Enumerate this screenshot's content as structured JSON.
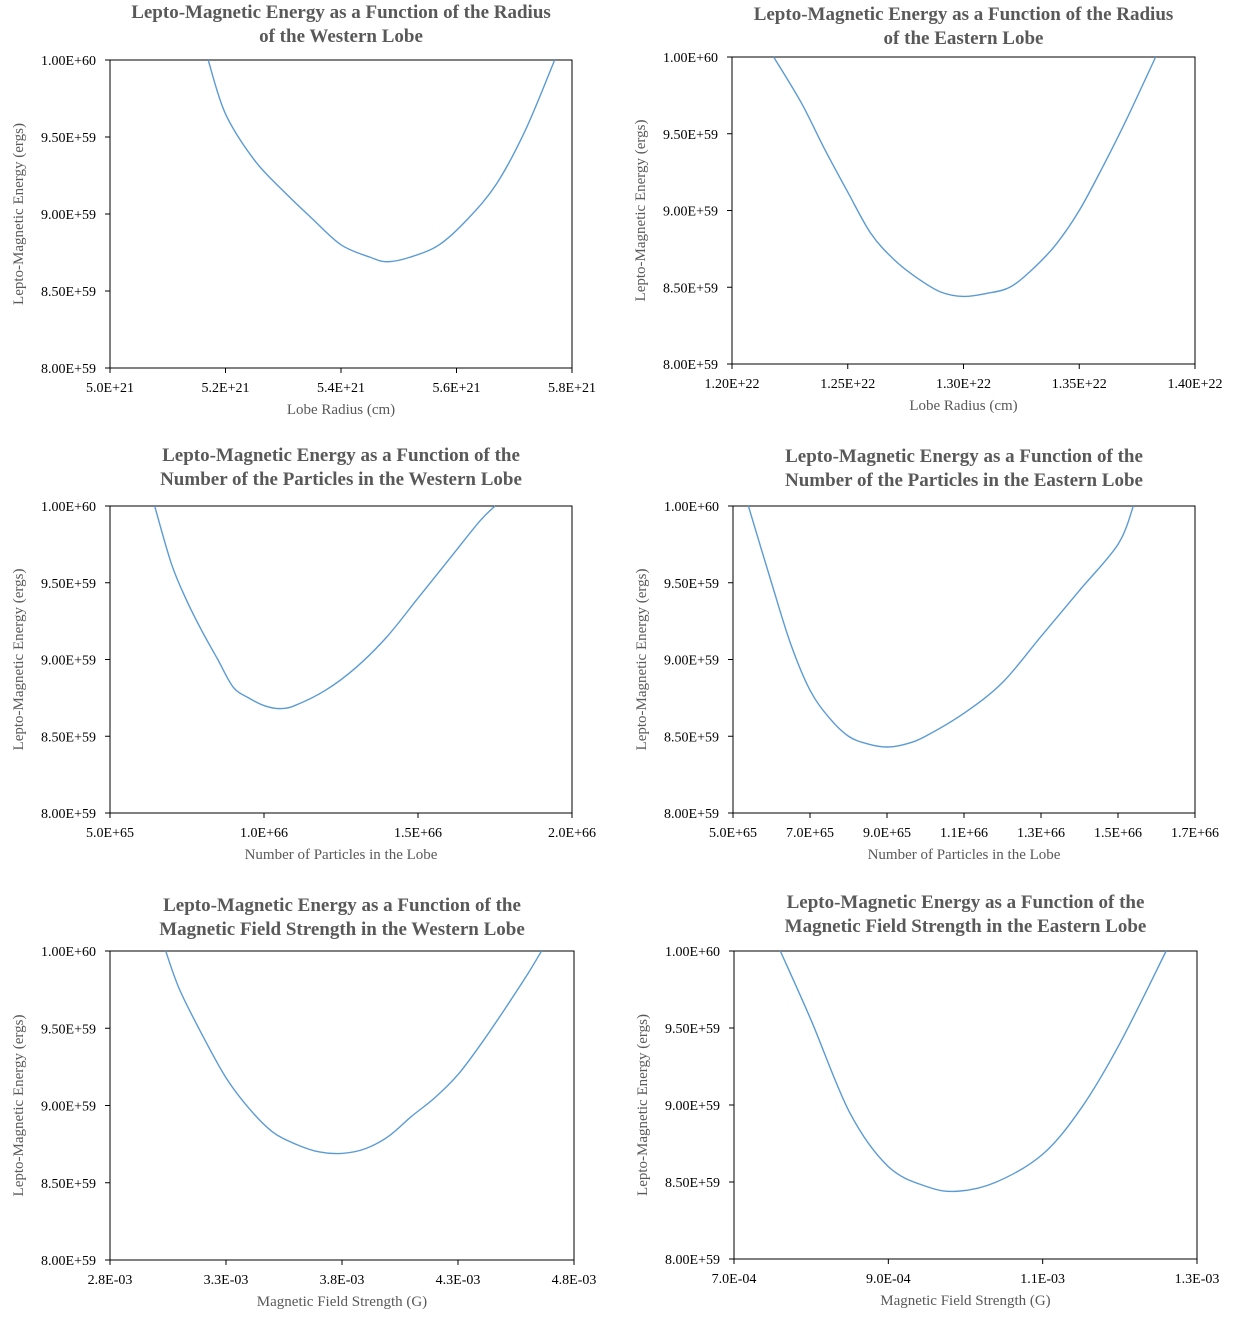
{
  "figure": {
    "curve_color": "#5b9bd5"
  },
  "chart_data": [
    {
      "type": "line",
      "title": [
        "Lepto-Magnetic Energy as a Function of the Radius",
        "of the Western Lobe"
      ],
      "xlabel": "Lobe Radius (cm)",
      "ylabel": "Lepto-Magnetic Energy (ergs)",
      "x_tick_labels": [
        "5.0E+21",
        "5.2E+21",
        "5.4E+21",
        "5.6E+21",
        "5.8E+21"
      ],
      "x_ticks": [
        5e+21,
        5.2e+21,
        5.4e+21,
        5.6e+21,
        5.8e+21
      ],
      "xlim": [
        5e+21,
        5.8e+21
      ],
      "y_tick_labels": [
        "8.00E+59",
        "8.50E+59",
        "9.00E+59",
        "9.50E+59",
        "1.00E+60"
      ],
      "ylim": [
        8e+59,
        1e+60
      ],
      "grid": false,
      "series": [
        {
          "x": [
            5.17e+21,
            5.2e+21,
            5.25e+21,
            5.3e+21,
            5.35e+21,
            5.4e+21,
            5.45e+21,
            5.48e+21,
            5.52e+21,
            5.57e+21,
            5.62e+21,
            5.67e+21,
            5.72e+21,
            5.77e+21
          ],
          "y": [
            1e+60,
            9.65e+59,
            9.35e+59,
            9.15e+59,
            8.97e+59,
            8.8e+59,
            8.72e+59,
            8.69e+59,
            8.72e+59,
            8.8e+59,
            8.97e+59,
            9.2e+59,
            9.55e+59,
            1e+60
          ]
        }
      ]
    },
    {
      "type": "line",
      "title": [
        "Lepto-Magnetic Energy as a Function of the Radius",
        "of the Eastern Lobe"
      ],
      "xlabel": "Lobe Radius (cm)",
      "ylabel": "Lepto-Magnetic Energy (ergs)",
      "x_tick_labels": [
        "1.20E+22",
        "1.25E+22",
        "1.30E+22",
        "1.35E+22",
        "1.40E+22"
      ],
      "x_ticks": [
        1.2e+22,
        1.25e+22,
        1.3e+22,
        1.35e+22,
        1.4e+22
      ],
      "xlim": [
        1.2e+22,
        1.4e+22
      ],
      "y_tick_labels": [
        "8.00E+59",
        "8.50E+59",
        "9.00E+59",
        "9.50E+59",
        "1.00E+60"
      ],
      "ylim": [
        8e+59,
        1e+60
      ],
      "grid": false,
      "series": [
        {
          "x": [
            1.218e+22,
            1.23e+22,
            1.24e+22,
            1.25e+22,
            1.26e+22,
            1.27e+22,
            1.28e+22,
            1.29e+22,
            1.3e+22,
            1.31e+22,
            1.32e+22,
            1.33e+22,
            1.34e+22,
            1.35e+22,
            1.36e+22,
            1.37e+22,
            1.383e+22
          ],
          "y": [
            1e+60,
            9.7e+59,
            9.4e+59,
            9.12e+59,
            8.85e+59,
            8.68e+59,
            8.56e+59,
            8.47e+59,
            8.44e+59,
            8.46e+59,
            8.5e+59,
            8.62e+59,
            8.78e+59,
            9e+59,
            9.28e+59,
            9.58e+59,
            1e+60
          ]
        }
      ]
    },
    {
      "type": "line",
      "title": [
        "Lepto-Magnetic Energy as a Function of the",
        "Number of the Particles in the Western Lobe"
      ],
      "xlabel": "Number of Particles in the Lobe",
      "ylabel": "Lepto-Magnetic Energy (ergs)",
      "x_tick_labels": [
        "5.0E+65",
        "1.0E+66",
        "1.5E+66",
        "2.0E+66"
      ],
      "x_ticks": [
        5e+65,
        1e+66,
        1.5e+66,
        2e+66
      ],
      "xlim": [
        5e+65,
        2e+66
      ],
      "y_tick_labels": [
        "8.00E+59",
        "8.50E+59",
        "9.00E+59",
        "9.50E+59",
        "1.00E+60"
      ],
      "ylim": [
        8e+59,
        1e+60
      ],
      "grid": false,
      "series": [
        {
          "x": [
            6.45e+65,
            7e+65,
            7.5e+65,
            8e+65,
            8.5e+65,
            9e+65,
            9.5e+65,
            1e+66,
            1.05e+66,
            1.1e+66,
            1.2e+66,
            1.3e+66,
            1.4e+66,
            1.5e+66,
            1.6e+66,
            1.7e+66,
            1.75e+66
          ],
          "y": [
            1e+60,
            9.62e+59,
            9.38e+59,
            9.18e+59,
            9e+59,
            8.82e+59,
            8.75e+59,
            8.7e+59,
            8.68e+59,
            8.7e+59,
            8.8e+59,
            8.95e+59,
            9.15e+59,
            9.4e+59,
            9.65e+59,
            9.9e+59,
            1e+60
          ]
        }
      ]
    },
    {
      "type": "line",
      "title": [
        "Lepto-Magnetic Energy as a Function of the",
        "Number of the Particles in the Eastern Lobe"
      ],
      "xlabel": "Number of Particles in the Lobe",
      "ylabel": "Lepto-Magnetic Energy (ergs)",
      "x_tick_labels": [
        "5.0E+65",
        "7.0E+65",
        "9.0E+65",
        "1.1E+66",
        "1.3E+66",
        "1.5E+66",
        "1.7E+66"
      ],
      "x_ticks": [
        5e+65,
        7e+65,
        9e+65,
        1.1e+66,
        1.3e+66,
        1.5e+66,
        1.7e+66
      ],
      "xlim": [
        5e+65,
        1.7e+66
      ],
      "y_tick_labels": [
        "8.00E+59",
        "8.50E+59",
        "9.00E+59",
        "9.50E+59",
        "1.00E+60"
      ],
      "ylim": [
        8e+59,
        1e+60
      ],
      "grid": false,
      "series": [
        {
          "x": [
            5.4e+65,
            6e+65,
            6.5e+65,
            7e+65,
            7.5e+65,
            8e+65,
            8.5e+65,
            9e+65,
            9.5e+65,
            1e+66,
            1.1e+66,
            1.2e+66,
            1.3e+66,
            1.4e+66,
            1.5e+66,
            1.54e+66
          ],
          "y": [
            1e+60,
            9.5e+59,
            9.1e+59,
            8.8e+59,
            8.62e+59,
            8.5e+59,
            8.45e+59,
            8.43e+59,
            8.45e+59,
            8.5e+59,
            8.65e+59,
            8.85e+59,
            9.15e+59,
            9.45e+59,
            9.75e+59,
            1e+60
          ]
        }
      ]
    },
    {
      "type": "line",
      "title": [
        "Lepto-Magnetic Energy as a Function of the",
        "Magnetic Field Strength in the Western Lobe"
      ],
      "xlabel": "Magnetic Field Strength (G)",
      "ylabel": "Lepto-Magnetic Energy (ergs)",
      "x_tick_labels": [
        "2.8E-03",
        "3.3E-03",
        "3.8E-03",
        "4.3E-03",
        "4.8E-03"
      ],
      "x_ticks": [
        0.0028,
        0.0033,
        0.0038,
        0.0043,
        0.0048
      ],
      "xlim": [
        0.0028,
        0.0048
      ],
      "y_tick_labels": [
        "8.00E+59",
        "8.50E+59",
        "9.00E+59",
        "9.50E+59",
        "1.00E+60"
      ],
      "ylim": [
        8e+59,
        1e+60
      ],
      "grid": false,
      "series": [
        {
          "x": [
            0.00304,
            0.0031,
            0.0032,
            0.0033,
            0.0034,
            0.0035,
            0.0036,
            0.0037,
            0.0038,
            0.0039,
            0.004,
            0.0041,
            0.0042,
            0.0043,
            0.0044,
            0.0045,
            0.0046,
            0.00466
          ],
          "y": [
            1e+60,
            9.75e+59,
            9.45e+59,
            9.18e+59,
            8.98e+59,
            8.83e+59,
            8.75e+59,
            8.7e+59,
            8.69e+59,
            8.72e+59,
            8.8e+59,
            8.93e+59,
            9.05e+59,
            9.2e+59,
            9.4e+59,
            9.62e+59,
            9.85e+59,
            1e+60
          ]
        }
      ]
    },
    {
      "type": "line",
      "title": [
        "Lepto-Magnetic Energy as a Function of the",
        "Magnetic Field Strength in the Eastern Lobe"
      ],
      "xlabel": "Magnetic Field Strength (G)",
      "ylabel": "Lepto-Magnetic Energy (ergs)",
      "x_tick_labels": [
        "7.0E-04",
        "9.0E-04",
        "1.1E-03",
        "1.3E-03"
      ],
      "x_ticks": [
        0.0007,
        0.0009,
        0.0011,
        0.0013
      ],
      "xlim": [
        0.0007,
        0.0013
      ],
      "y_tick_labels": [
        "8.00E+59",
        "8.50E+59",
        "9.00E+59",
        "9.50E+59",
        "1.00E+60"
      ],
      "ylim": [
        8e+59,
        1e+60
      ],
      "grid": false,
      "series": [
        {
          "x": [
            0.00076,
            0.0008,
            0.00085,
            0.0009,
            0.00095,
            0.00099,
            0.00104,
            0.0011,
            0.00115,
            0.0012,
            0.00126
          ],
          "y": [
            1e+60,
            9.55e+59,
            8.95e+59,
            8.6e+59,
            8.47e+59,
            8.44e+59,
            8.5e+59,
            8.68e+59,
            8.98e+59,
            9.4e+59,
            1e+60
          ]
        }
      ]
    }
  ]
}
